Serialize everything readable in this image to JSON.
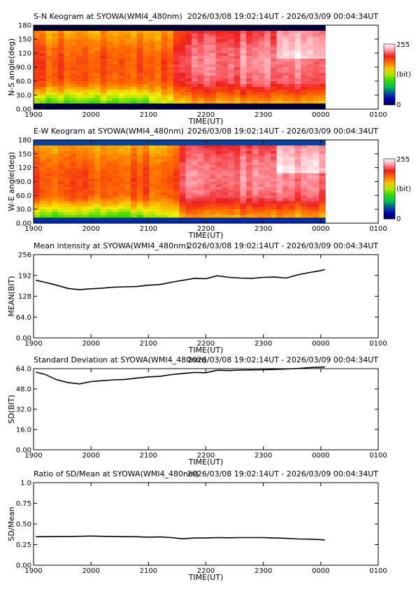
{
  "chart_data": [
    {
      "type": "heatmap",
      "title": "S-N Keogram at SYOWA(WMI4_480nm)",
      "time_range": "2026/03/08 19:02:14UT - 2026/03/09 00:04:34UT",
      "xlabel": "TIME(UT)",
      "ylabel": "N-S angle(deg)",
      "x_ticks": [
        "1900",
        "2000",
        "2100",
        "2200",
        "2300",
        "0000",
        "0100"
      ],
      "y_ticks": [
        "0.00",
        "30.0",
        "60.0",
        "90.0",
        "120",
        "150",
        "180"
      ],
      "xlim_hours": [
        19.0,
        25.0
      ],
      "ylim": [
        0,
        180
      ],
      "data_end_hours": 24.076,
      "colorbar": {
        "min": "0",
        "max": "255",
        "unit": "(bit)"
      }
    },
    {
      "type": "heatmap",
      "title": "E-W Keogram at SYOWA(WMI4_480nm)",
      "time_range": "2026/03/08 19:02:14UT - 2026/03/09 00:04:34UT",
      "xlabel": "TIME(UT)",
      "ylabel": "W-E angle(deg)",
      "x_ticks": [
        "1900",
        "2000",
        "2100",
        "2200",
        "2300",
        "0000",
        "0100"
      ],
      "y_ticks": [
        "0.00",
        "30.0",
        "60.0",
        "90.0",
        "120",
        "150",
        "180"
      ],
      "xlim_hours": [
        19.0,
        25.0
      ],
      "ylim": [
        0,
        180
      ],
      "data_end_hours": 24.076,
      "colorbar": {
        "min": "0",
        "max": "255",
        "unit": "(bit)"
      }
    },
    {
      "type": "line",
      "title": "Mean intensity at SYOWA(WMI4_480nm)",
      "time_range": "2026/03/08 19:02:14UT - 2026/03/09 00:04:34UT",
      "xlabel": "TIME(UT)",
      "ylabel": "MEAN(BIT)",
      "x_ticks": [
        "1900",
        "2000",
        "2100",
        "2200",
        "2300",
        "0000",
        "0100"
      ],
      "y_ticks": [
        "0.00",
        "64.0",
        "128",
        "192",
        "256"
      ],
      "xlim_hours": [
        19.0,
        25.0
      ],
      "ylim": [
        0,
        256
      ],
      "x_hours": [
        19.04,
        19.2,
        19.4,
        19.6,
        19.8,
        20.0,
        20.2,
        20.4,
        20.6,
        20.8,
        21.0,
        21.2,
        21.4,
        21.6,
        21.8,
        22.0,
        22.2,
        22.4,
        22.6,
        22.8,
        23.0,
        23.2,
        23.4,
        23.6,
        23.8,
        24.0,
        24.07
      ],
      "values": [
        177,
        171,
        162,
        152,
        148,
        151,
        153,
        156,
        157,
        158,
        162,
        164,
        171,
        177,
        183,
        182,
        191,
        186,
        184,
        183,
        186,
        187,
        184,
        194,
        201,
        207,
        210
      ]
    },
    {
      "type": "line",
      "title": "Standard Deviation at SYOWA(WMI4_480nm)",
      "time_range": "2026/03/08 19:02:14UT - 2026/03/09 00:04:34UT",
      "xlabel": "TIME(UT)",
      "ylabel": "SD(BIT)",
      "x_ticks": [
        "1900",
        "2000",
        "2100",
        "2200",
        "2300",
        "0000",
        "0100"
      ],
      "y_ticks": [
        "0.00",
        "16.0",
        "32.0",
        "48.0",
        "64.0"
      ],
      "xlim_hours": [
        19.0,
        25.0
      ],
      "ylim": [
        0,
        64
      ],
      "x_hours": [
        19.04,
        19.2,
        19.4,
        19.6,
        19.8,
        20.0,
        20.2,
        20.4,
        20.6,
        20.8,
        21.0,
        21.2,
        21.4,
        21.6,
        21.8,
        22.0,
        22.2,
        22.4,
        22.6,
        22.8,
        23.0,
        23.2,
        23.4,
        23.6,
        23.8,
        24.0,
        24.07
      ],
      "values": [
        61.3,
        59.5,
        55.3,
        53.0,
        52.0,
        53.8,
        54.5,
        55.2,
        55.5,
        56.6,
        57.5,
        58.0,
        59.3,
        60.2,
        61.0,
        60.8,
        62.8,
        62.5,
        62.9,
        63.0,
        63.2,
        63.4,
        63.7,
        64.1,
        64.8,
        65.2,
        65.3
      ]
    },
    {
      "type": "line",
      "title": "Ratio of SD/Mean at SYOWA(WMI4_480nm)",
      "time_range": "2026/03/08 19:02:14UT - 2026/03/09 00:04:34UT",
      "xlabel": "TIME(UT)",
      "ylabel": "SD/Mean",
      "x_ticks": [
        "1900",
        "2000",
        "2100",
        "2200",
        "2300",
        "0000",
        "0100"
      ],
      "y_ticks": [
        "0.00",
        "0.25",
        "0.50",
        "0.75",
        "1.0"
      ],
      "xlim_hours": [
        19.0,
        25.0
      ],
      "ylim": [
        0,
        1.0
      ],
      "x_hours": [
        19.04,
        19.2,
        19.4,
        19.6,
        19.8,
        20.0,
        20.2,
        20.4,
        20.6,
        20.8,
        21.0,
        21.2,
        21.4,
        21.6,
        21.8,
        22.0,
        22.2,
        22.4,
        22.6,
        22.8,
        23.0,
        23.2,
        23.4,
        23.6,
        23.8,
        24.0,
        24.07
      ],
      "values": [
        0.345,
        0.346,
        0.347,
        0.348,
        0.35,
        0.353,
        0.35,
        0.348,
        0.346,
        0.345,
        0.34,
        0.342,
        0.335,
        0.32,
        0.33,
        0.33,
        0.335,
        0.332,
        0.335,
        0.335,
        0.335,
        0.33,
        0.325,
        0.318,
        0.316,
        0.31,
        0.305
      ]
    }
  ]
}
